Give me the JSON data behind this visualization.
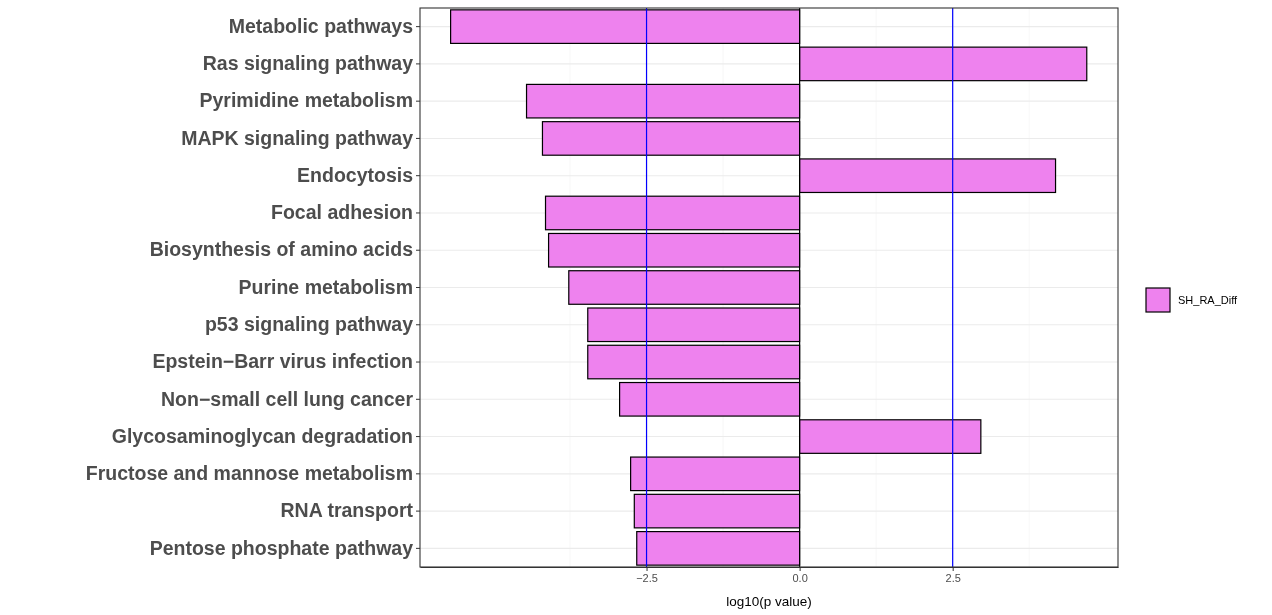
{
  "chart_data": {
    "type": "bar",
    "orientation": "horizontal",
    "xlabel": "log10(p value)",
    "categories": [
      "Metabolic pathways",
      "Ras signaling pathway",
      "Pyrimidine metabolism",
      "MAPK signaling pathway",
      "Endocytosis",
      "Focal adhesion",
      "Biosynthesis of amino acids",
      "Purine metabolism",
      "p53 signaling pathway",
      "Epstein−Barr virus infection",
      "Non−small cell lung cancer",
      "Glycosaminoglycan degradation",
      "Fructose and mannose metabolism",
      "RNA transport",
      "Pentose phosphate pathway"
    ],
    "series": [
      {
        "name": "SH_RA_Diff",
        "color": "#ee82ee",
        "values": [
          -5.7,
          4.69,
          -4.46,
          -4.2,
          4.18,
          -4.15,
          -4.1,
          -3.77,
          -3.46,
          -3.46,
          -2.94,
          2.96,
          -2.76,
          -2.7,
          -2.66
        ]
      }
    ],
    "xlim": [
      -6.2,
      5.2
    ],
    "xticks": [
      {
        "value": -2.5,
        "label": "−2.5"
      },
      {
        "value": 0,
        "label": "0.0"
      },
      {
        "value": 2.5,
        "label": "2.5"
      }
    ],
    "ref_lines": [
      {
        "axis": "x",
        "value": 0,
        "color": "#000000"
      },
      {
        "axis": "x",
        "value": -2.5,
        "color": "#0000ff"
      },
      {
        "axis": "x",
        "value": 2.5,
        "color": "#0000ff"
      }
    ],
    "grid": true,
    "legend": "right"
  }
}
